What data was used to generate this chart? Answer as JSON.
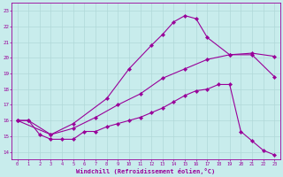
{
  "xlabel": "Windchill (Refroidissement éolien,°C)",
  "background_color": "#c8ecec",
  "line_color": "#990099",
  "grid_color": "#b0d8d8",
  "xlim": [
    -0.5,
    23.5
  ],
  "ylim": [
    13.5,
    23.5
  ],
  "xticks": [
    0,
    1,
    2,
    3,
    4,
    5,
    6,
    7,
    8,
    9,
    10,
    11,
    12,
    13,
    14,
    15,
    16,
    17,
    18,
    19,
    20,
    21,
    22,
    23
  ],
  "yticks": [
    14,
    15,
    16,
    17,
    18,
    19,
    20,
    21,
    22,
    23
  ],
  "lines": [
    {
      "x": [
        0,
        1,
        2,
        3,
        4,
        5,
        6,
        7,
        8,
        9,
        10,
        11,
        12,
        13,
        14,
        15,
        16,
        17,
        18,
        19,
        20,
        21,
        22,
        23
      ],
      "y": [
        16,
        16,
        15.1,
        14.8,
        14.8,
        14.8,
        15.3,
        15.3,
        15.6,
        15.8,
        16.0,
        16.2,
        16.5,
        16.8,
        17.2,
        17.6,
        17.9,
        18.0,
        18.3,
        18.3,
        15.3,
        14.7,
        14.1,
        13.8
      ]
    },
    {
      "x": [
        0,
        1,
        3,
        5,
        7,
        9,
        11,
        13,
        15,
        17,
        19,
        21,
        23
      ],
      "y": [
        16,
        16,
        15.1,
        15.5,
        16.2,
        17.0,
        17.7,
        18.7,
        19.3,
        19.9,
        20.2,
        20.3,
        20.1
      ]
    },
    {
      "x": [
        0,
        3,
        5,
        8,
        10,
        12,
        13,
        14,
        15,
        16,
        17,
        19,
        21,
        23
      ],
      "y": [
        16,
        15.1,
        15.8,
        17.4,
        19.3,
        20.8,
        21.5,
        22.3,
        22.7,
        22.5,
        21.3,
        20.2,
        20.2,
        18.8
      ]
    }
  ]
}
